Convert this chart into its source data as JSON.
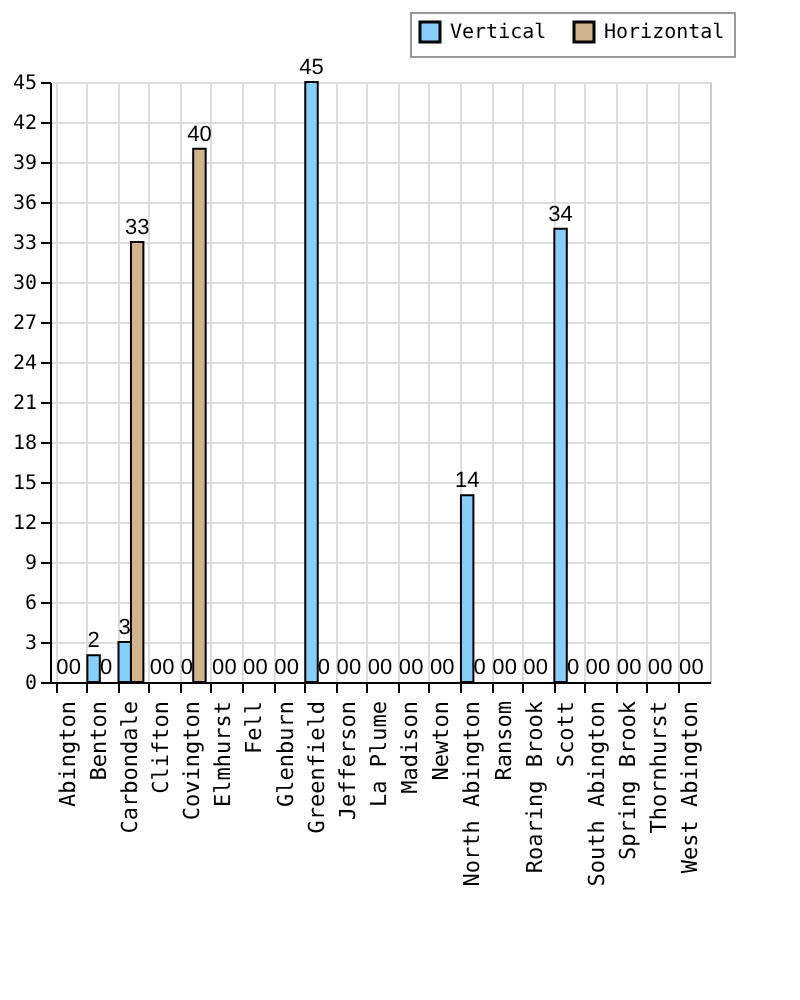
{
  "chart_data": {
    "type": "bar",
    "categories": [
      "Abington",
      "Benton",
      "Carbondale",
      "Clifton",
      "Covington",
      "Elmhurst",
      "Fell",
      "Glenburn",
      "Greenfield",
      "Jefferson",
      "La Plume",
      "Madison",
      "Newton",
      "North Abington",
      "Ransom",
      "Roaring Brook",
      "Scott",
      "South Abington",
      "Spring Brook",
      "Thornhurst",
      "West Abington"
    ],
    "series": [
      {
        "name": "Vertical",
        "color": "#87cefa",
        "values": [
          0,
          2,
          3,
          0,
          0,
          0,
          0,
          0,
          45,
          0,
          0,
          0,
          0,
          14,
          0,
          0,
          34,
          0,
          0,
          0,
          0
        ]
      },
      {
        "name": "Horizontal",
        "color": "#d2b48c",
        "values": [
          0,
          0,
          33,
          0,
          40,
          0,
          0,
          0,
          0,
          0,
          0,
          0,
          0,
          0,
          0,
          0,
          0,
          0,
          0,
          0,
          0
        ]
      }
    ],
    "ylim": [
      0,
      45
    ],
    "yticks": [
      0,
      3,
      6,
      9,
      12,
      15,
      18,
      21,
      24,
      27,
      30,
      33,
      36,
      39,
      42,
      45
    ],
    "grid": true,
    "legend": "top right",
    "data_labels": true
  }
}
